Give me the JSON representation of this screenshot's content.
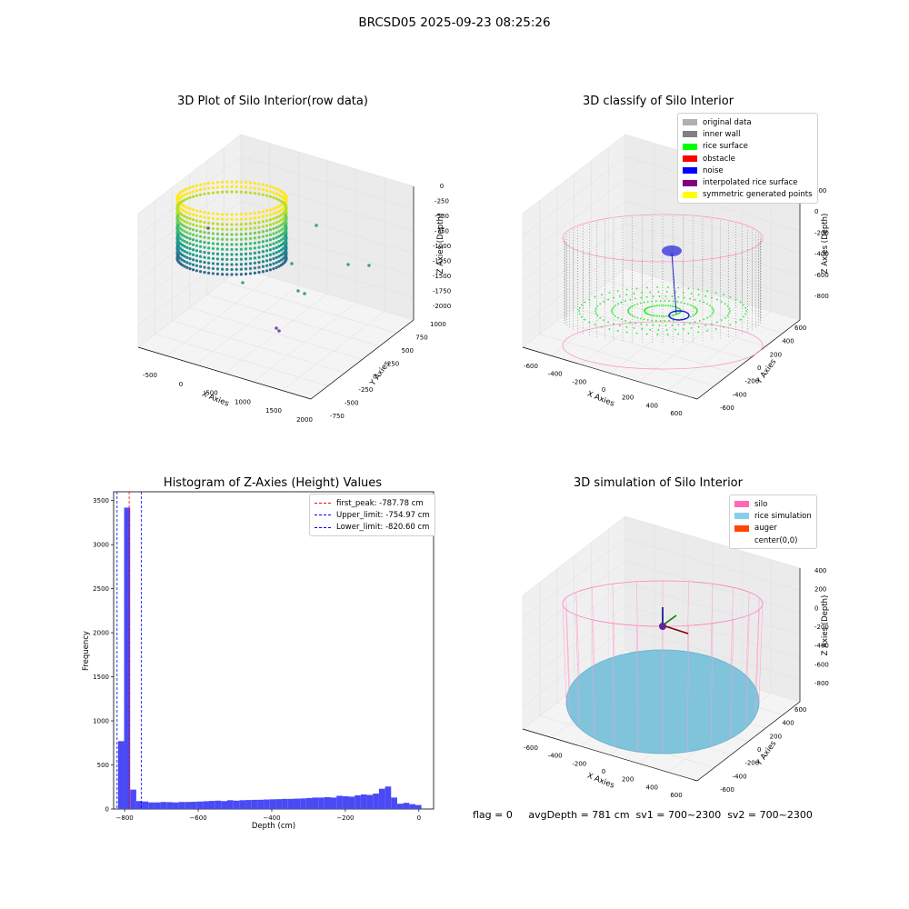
{
  "figure": {
    "suptitle": "BRCSD05 2025-09-23 08:25:26"
  },
  "panels": {
    "raw": {
      "title": "3D Plot of Silo Interior(row data)",
      "xlabel": "X Axies",
      "ylabel": "Y Axies",
      "zlabel": "Z Axies (Depth)",
      "xticks": [
        "-500",
        "0",
        "500",
        "1000",
        "1500",
        "2000"
      ],
      "yticks": [
        "-750",
        "-500",
        "-250",
        "0",
        "250",
        "500",
        "750",
        "1000"
      ],
      "zticks": [
        "0",
        "-250",
        "-500",
        "-750",
        "-1000",
        "-1250",
        "-1500",
        "-1750",
        "-2000"
      ],
      "colormap": "viridis"
    },
    "classify": {
      "title": "3D classify of Silo Interior",
      "xlabel": "X Axies",
      "ylabel": "Y Axies",
      "zlabel": "Z Axies (Depth)",
      "xticks": [
        "-600",
        "-400",
        "-200",
        "0",
        "200",
        "400",
        "600"
      ],
      "yticks": [
        "-600",
        "-400",
        "-200",
        "0",
        "200",
        "400",
        "600"
      ],
      "zticks": [
        "200",
        "0",
        "-200",
        "-400",
        "-600",
        "-800"
      ],
      "legend": [
        {
          "label": "original data",
          "color": "#b0b0b0"
        },
        {
          "label": "inner wall",
          "color": "#808080"
        },
        {
          "label": "rice surface",
          "color": "#00ff00"
        },
        {
          "label": "obstacle",
          "color": "#ff0000"
        },
        {
          "label": "noise",
          "color": "#0000ff"
        },
        {
          "label": "interpolated rice surface",
          "color": "#800080"
        },
        {
          "label": "symmetric generated points",
          "color": "#ffff00"
        }
      ]
    },
    "histogram": {
      "title": "Histogram of Z-Axies (Height) Values",
      "legend": [
        {
          "label": "first_peak: -787.78 cm",
          "color": "#ff0000"
        },
        {
          "label": "Upper_limit: -754.97 cm",
          "color": "#0000ff"
        },
        {
          "label": "Lower_limit: -820.60 cm",
          "color": "#0000ff"
        }
      ]
    },
    "simulation": {
      "title": "3D simulation of Silo Interior",
      "xlabel": "X Axies",
      "ylabel": "Y Axies",
      "zlabel": "Z Axies (Depth)",
      "xticks": [
        "-600",
        "-400",
        "-200",
        "0",
        "200",
        "400",
        "600"
      ],
      "yticks": [
        "-600",
        "-400",
        "-200",
        "0",
        "200",
        "400",
        "600"
      ],
      "zticks": [
        "400",
        "200",
        "0",
        "-200",
        "-400",
        "-600",
        "-800"
      ],
      "legend": [
        {
          "label": "silo",
          "color": "#ff69b4"
        },
        {
          "label": "rice simulation",
          "color": "#87ceeb"
        },
        {
          "label": "auger",
          "color": "#ff4500"
        },
        {
          "label": "center(0,0)",
          "color": "#ffffff"
        }
      ]
    }
  },
  "status": {
    "text": "flag = 0     avgDepth = 781 cm  sv1 = 700~2300  sv2 = 700~2300"
  },
  "chart_data": [
    {
      "type": "bar",
      "title": "Histogram of Z-Axies (Height) Values",
      "xlabel": "Depth (cm)",
      "ylabel": "Frequency",
      "xlim": [
        -830,
        40
      ],
      "ylim": [
        0,
        3600
      ],
      "xticks": [
        -800,
        -600,
        -400,
        -200,
        0
      ],
      "yticks": [
        0,
        500,
        1000,
        1500,
        2000,
        2500,
        3000,
        3500
      ],
      "bin_width": 16.5,
      "bin_start": -818,
      "values": [
        770,
        3420,
        220,
        90,
        85,
        75,
        75,
        80,
        78,
        75,
        80,
        80,
        82,
        85,
        88,
        92,
        95,
        90,
        100,
        95,
        100,
        102,
        104,
        105,
        108,
        110,
        112,
        115,
        115,
        118,
        120,
        125,
        130,
        130,
        135,
        130,
        150,
        145,
        140,
        155,
        165,
        160,
        175,
        230,
        255,
        130,
        60,
        70,
        55,
        45
      ],
      "vlines": [
        {
          "x": -787.78,
          "color": "#ff0000",
          "label": "first_peak: -787.78 cm"
        },
        {
          "x": -754.97,
          "color": "#0000ff",
          "label": "Upper_limit: -754.97 cm"
        },
        {
          "x": -820.6,
          "color": "#0000ff",
          "label": "Lower_limit: -820.60 cm"
        }
      ],
      "bar_color": "#4a4af5",
      "grid": false,
      "legend_position": "top-right"
    }
  ]
}
